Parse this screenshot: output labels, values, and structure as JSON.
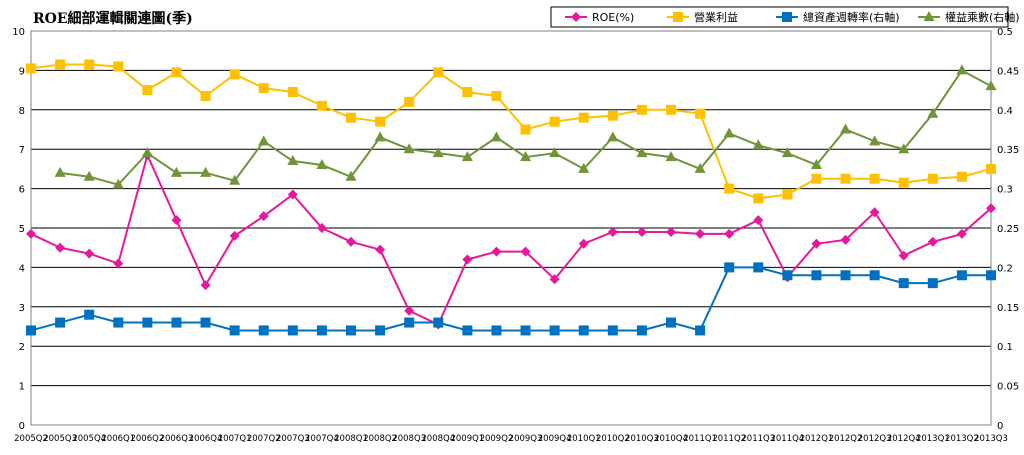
{
  "chart_data": {
    "type": "line",
    "title": "ROE細部運輯關連圖(季)",
    "categories": [
      "2005Q2",
      "2005Q3",
      "2005Q4",
      "2006Q1",
      "2006Q2",
      "2006Q3",
      "2006Q4",
      "2007Q1",
      "2007Q2",
      "2007Q3",
      "2007Q4",
      "2008Q1",
      "2008Q2",
      "2008Q3",
      "2008Q4",
      "2009Q1",
      "2009Q2",
      "2009Q3",
      "2009Q4",
      "2010Q1",
      "2010Q2",
      "2010Q3",
      "2010Q4",
      "2011Q1",
      "2011Q2",
      "2011Q3",
      "2011Q4",
      "2012Q1",
      "2012Q2",
      "2012Q3",
      "2012Q4",
      "2013Q1",
      "2013Q2",
      "2013Q3"
    ],
    "ylim_left": [
      0,
      10
    ],
    "ylim_right": [
      0,
      0.5
    ],
    "yticks_left": [
      "0",
      "1",
      "2",
      "3",
      "4",
      "5",
      "6",
      "7",
      "8",
      "9",
      "10"
    ],
    "yticks_right": [
      "0",
      "0.05",
      "0.1",
      "0.15",
      "0.2",
      "0.25",
      "0.3",
      "0.35",
      "0.4",
      "0.45",
      "0.5"
    ],
    "grid": true,
    "legend_position": "top-right",
    "series": [
      {
        "name": "ROE(%)",
        "axis": "left",
        "color": "#e6189b",
        "marker": "diamond",
        "values": [
          4.85,
          4.5,
          4.35,
          4.1,
          6.85,
          5.2,
          3.55,
          4.8,
          5.3,
          5.85,
          5.0,
          4.65,
          4.45,
          2.9,
          2.55,
          4.2,
          4.4,
          4.4,
          3.7,
          4.6,
          4.9,
          4.9,
          4.9,
          4.85,
          4.85,
          5.2,
          3.75,
          4.6,
          4.7,
          5.4,
          4.3,
          4.65,
          4.85,
          5.5
        ]
      },
      {
        "name": "營業利益",
        "axis": "left",
        "color": "#ffc000",
        "marker": "square",
        "values": [
          9.05,
          9.15,
          9.15,
          9.1,
          8.5,
          8.95,
          8.35,
          8.9,
          8.55,
          8.45,
          8.1,
          7.8,
          7.7,
          8.2,
          8.95,
          8.45,
          8.35,
          7.5,
          7.7,
          7.8,
          7.85,
          8.0,
          8.0,
          7.9,
          6.0,
          5.75,
          5.85,
          6.25,
          6.25,
          6.25,
          6.15,
          6.25,
          6.3,
          6.5
        ]
      },
      {
        "name": "總資產週轉率(右軸)",
        "axis": "right",
        "color": "#0070c0",
        "marker": "square",
        "values": [
          0.12,
          0.13,
          0.14,
          0.13,
          0.13,
          0.13,
          0.13,
          0.12,
          0.12,
          0.12,
          0.12,
          0.12,
          0.12,
          0.13,
          0.13,
          0.12,
          0.12,
          0.12,
          0.12,
          0.12,
          0.12,
          0.12,
          0.13,
          0.12,
          0.2,
          0.2,
          0.19,
          0.19,
          0.19,
          0.19,
          0.18,
          0.18,
          0.19,
          0.19
        ]
      },
      {
        "name": "權益乘數(右軸)",
        "axis": "right",
        "color": "#70943a",
        "marker": "triangle",
        "values": [
          null,
          0.32,
          0.315,
          0.305,
          0.345,
          0.32,
          0.32,
          0.31,
          0.36,
          0.335,
          0.33,
          0.315,
          0.365,
          0.35,
          0.345,
          0.34,
          0.365,
          0.34,
          0.345,
          0.325,
          0.365,
          0.345,
          0.34,
          0.325,
          0.37,
          0.355,
          0.345,
          0.33,
          0.375,
          0.36,
          0.35,
          0.395,
          0.45,
          0.43
        ]
      }
    ]
  }
}
